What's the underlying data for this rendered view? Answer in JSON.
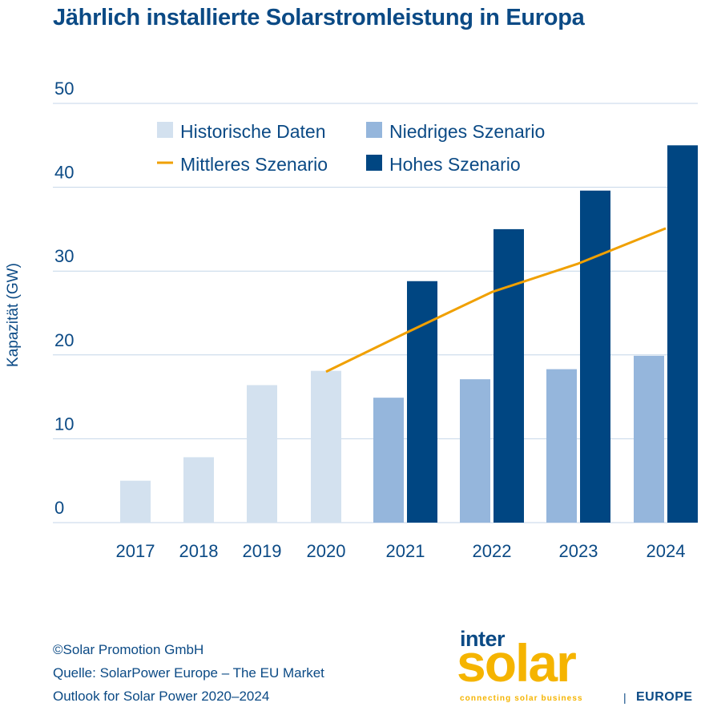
{
  "title": "Jährlich installierte Solarstromleistung in Europa",
  "credits": {
    "line1": "©Solar Promotion GmbH",
    "line2": "Quelle: SolarPower Europe – The EU Market",
    "line3": "Outlook for Solar Power 2020–2024"
  },
  "logo": {
    "inter": "inter",
    "solar": "solar",
    "tagline": "connecting solar business",
    "separator": "|",
    "region": "EUROPE"
  },
  "colors": {
    "historical": "#d3e1ef",
    "low": "#95b6dc",
    "high": "#004682",
    "medium": "#f0a000",
    "text": "#0b4a85",
    "grid": "#c4d6e8"
  },
  "chart_data": {
    "type": "bar",
    "title": "Jährlich installierte Solarstromleistung in Europa",
    "xlabel": "",
    "ylabel": "Kapazität (GW)",
    "ylim": [
      0,
      50
    ],
    "yticks": [
      0,
      10,
      20,
      30,
      40,
      50
    ],
    "grid": true,
    "legend_position": "top",
    "categories": [
      "2017",
      "2018",
      "2019",
      "2020",
      "2021",
      "2022",
      "2023",
      "2024"
    ],
    "series": [
      {
        "name": "Historische Daten",
        "type": "bar",
        "color": "#d3e1ef",
        "values": [
          5.0,
          7.8,
          16.4,
          18.1,
          null,
          null,
          null,
          null
        ]
      },
      {
        "name": "Niedriges Szenario",
        "type": "bar",
        "color": "#95b6dc",
        "values": [
          null,
          null,
          null,
          null,
          14.9,
          17.1,
          18.3,
          19.9
        ]
      },
      {
        "name": "Hohes Szenario",
        "type": "bar",
        "color": "#004682",
        "values": [
          null,
          null,
          null,
          null,
          28.8,
          35.0,
          39.6,
          45.0
        ]
      },
      {
        "name": "Mittleres Szenario",
        "type": "line",
        "color": "#f0a000",
        "values": [
          null,
          null,
          null,
          18.0,
          22.6,
          27.5,
          30.9,
          35.1
        ]
      }
    ],
    "legend": [
      {
        "name": "Historische Daten",
        "kind": "box",
        "color": "#d3e1ef"
      },
      {
        "name": "Niedriges Szenario",
        "kind": "box",
        "color": "#95b6dc"
      },
      {
        "name": "Mittleres Szenario",
        "kind": "line",
        "color": "#f0a000"
      },
      {
        "name": "Hohes Szenario",
        "kind": "box",
        "color": "#004682"
      }
    ]
  }
}
